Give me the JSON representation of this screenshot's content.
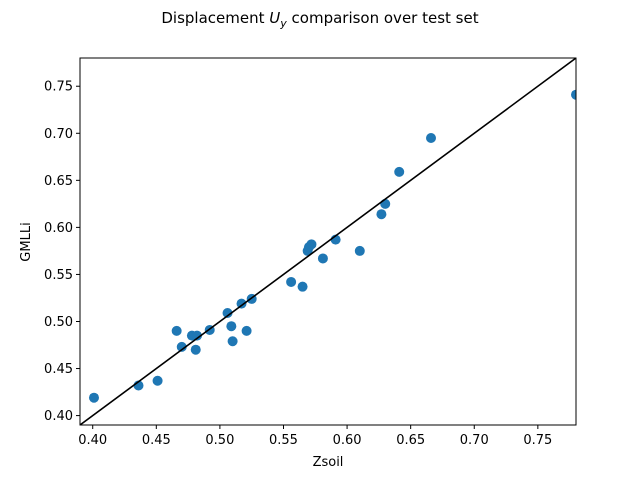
{
  "chart_data": {
    "type": "scatter",
    "title": {
      "prefix": "Displacement ",
      "symbol": "U",
      "subscript": "y",
      "suffix": " comparison over test set"
    },
    "xlabel": "Zsoil",
    "ylabel": "GMLLi",
    "xlim": [
      0.39,
      0.78
    ],
    "ylim": [
      0.39,
      0.78
    ],
    "x_ticks": [
      "0.40",
      "0.45",
      "0.50",
      "0.55",
      "0.60",
      "0.65",
      "0.70",
      "0.75"
    ],
    "y_ticks": [
      "0.40",
      "0.45",
      "0.50",
      "0.55",
      "0.60",
      "0.65",
      "0.70",
      "0.75"
    ],
    "grid": false,
    "marker_color": "#1f77b4",
    "reference_line": {
      "from": [
        0.39,
        0.39
      ],
      "to": [
        0.78,
        0.78
      ],
      "color": "#000000"
    },
    "points": [
      {
        "x": 0.401,
        "y": 0.419
      },
      {
        "x": 0.436,
        "y": 0.432
      },
      {
        "x": 0.451,
        "y": 0.437
      },
      {
        "x": 0.466,
        "y": 0.49
      },
      {
        "x": 0.47,
        "y": 0.473
      },
      {
        "x": 0.478,
        "y": 0.485
      },
      {
        "x": 0.481,
        "y": 0.47
      },
      {
        "x": 0.482,
        "y": 0.485
      },
      {
        "x": 0.492,
        "y": 0.491
      },
      {
        "x": 0.506,
        "y": 0.509
      },
      {
        "x": 0.509,
        "y": 0.495
      },
      {
        "x": 0.51,
        "y": 0.479
      },
      {
        "x": 0.517,
        "y": 0.519
      },
      {
        "x": 0.521,
        "y": 0.49
      },
      {
        "x": 0.525,
        "y": 0.524
      },
      {
        "x": 0.556,
        "y": 0.542
      },
      {
        "x": 0.565,
        "y": 0.537
      },
      {
        "x": 0.569,
        "y": 0.575
      },
      {
        "x": 0.57,
        "y": 0.579
      },
      {
        "x": 0.572,
        "y": 0.582
      },
      {
        "x": 0.581,
        "y": 0.567
      },
      {
        "x": 0.591,
        "y": 0.587
      },
      {
        "x": 0.61,
        "y": 0.575
      },
      {
        "x": 0.627,
        "y": 0.614
      },
      {
        "x": 0.63,
        "y": 0.625
      },
      {
        "x": 0.641,
        "y": 0.659
      },
      {
        "x": 0.666,
        "y": 0.695
      },
      {
        "x": 0.78,
        "y": 0.741
      }
    ]
  }
}
